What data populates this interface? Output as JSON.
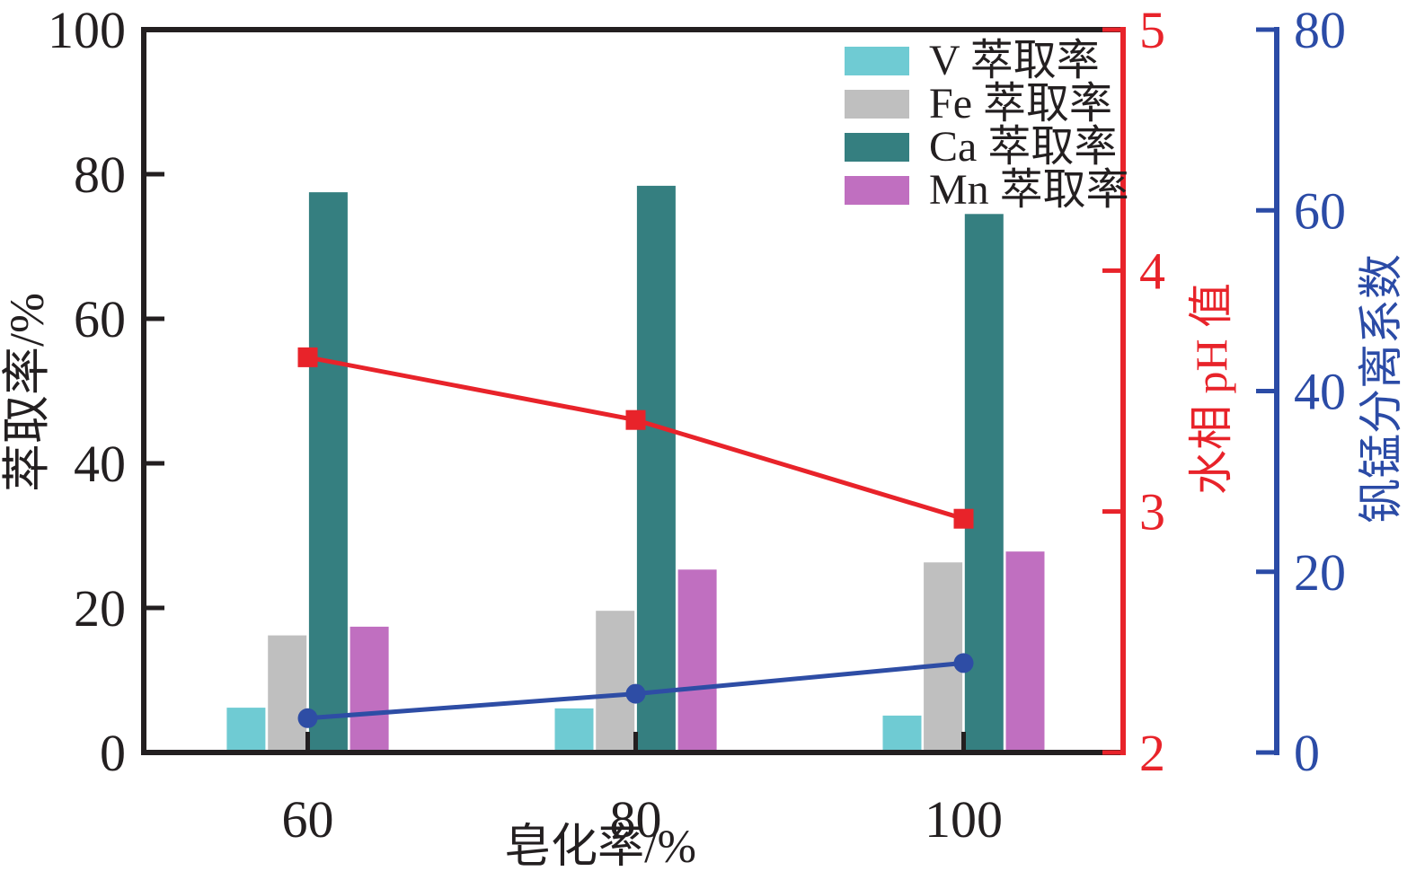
{
  "figure": {
    "background": "#ffffff",
    "text_color": "#231f20"
  },
  "chart_data": {
    "type": "bar",
    "subtype": "grouped bars with two overlay line series",
    "x_categories": [
      "60",
      "80",
      "100"
    ],
    "xlabel": "皂化率/%",
    "left_axis": {
      "label": "萃取率/%",
      "ticks": [
        "0",
        "20",
        "40",
        "60",
        "80",
        "100"
      ],
      "tick_values": [
        0,
        20,
        40,
        60,
        80,
        100
      ],
      "range": [
        0,
        100
      ],
      "color": "#231f20"
    },
    "right_axis_ph": {
      "label": "水相 pH 值",
      "ticks": [
        "2",
        "3",
        "4",
        "5"
      ],
      "tick_values": [
        2,
        3,
        4,
        5
      ],
      "range": [
        2,
        5
      ],
      "color": "#e8232a"
    },
    "right_axis_coeff": {
      "label": "钒锰分离系数",
      "ticks": [
        "0",
        "20",
        "40",
        "60",
        "80"
      ],
      "tick_values": [
        0,
        20,
        40,
        60,
        80
      ],
      "range": [
        0,
        80
      ],
      "color": "#2b4ba6"
    },
    "bar_series": [
      {
        "name": "V 萃取率",
        "color": "#6fcbd3",
        "values": [
          6.2,
          6.1,
          5.1
        ]
      },
      {
        "name": "Fe 萃取率",
        "color": "#bfbfbf",
        "values": [
          16.2,
          19.6,
          26.3
        ]
      },
      {
        "name": "Ca 萃取率",
        "color": "#357f80",
        "values": [
          77.5,
          78.4,
          74.5
        ]
      },
      {
        "name": "Mn 萃取率",
        "color": "#c06fc0",
        "values": [
          17.4,
          25.3,
          27.8
        ]
      }
    ],
    "line_series": [
      {
        "name": "水相 pH 值",
        "axis": "ph",
        "marker": "square",
        "color": "#e8232a",
        "values": [
          3.64,
          3.38,
          2.97
        ]
      },
      {
        "name": "钒锰分离系数",
        "axis": "coeff",
        "marker": "circle",
        "color": "#2e4da5",
        "values": [
          3.8,
          6.5,
          9.9
        ]
      }
    ],
    "legend": {
      "position": "top-right-inside",
      "entries": [
        "V 萃取率",
        "Fe 萃取率",
        "Ca 萃取率",
        "Mn 萃取率"
      ]
    },
    "grid": "off"
  }
}
